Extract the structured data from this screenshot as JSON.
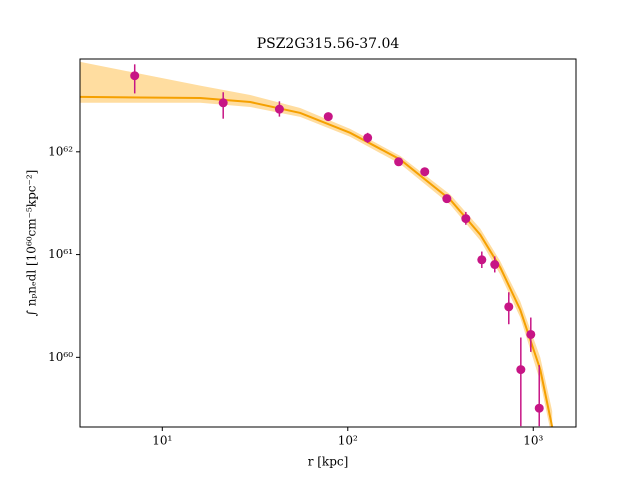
{
  "chart_data": {
    "type": "scatter",
    "title": "PSZ2G315.56-37.04",
    "xlabel": "r [kpc]",
    "ylabel": "∫ nₚnₑdl [10⁶⁰cm⁻⁵kpc⁻²]",
    "xscale": "log",
    "yscale": "log",
    "xlim": [
      3.6,
      1700
    ],
    "ylim": [
      2.1e+59,
      8e+62
    ],
    "xticks": [
      {
        "value": 10,
        "label": "10¹"
      },
      {
        "value": 100,
        "label": "10²"
      },
      {
        "value": 1000,
        "label": "10³"
      }
    ],
    "yticks": [
      {
        "value": 1e+60,
        "label": "10⁶⁰"
      },
      {
        "value": 1e+61,
        "label": "10⁶¹"
      },
      {
        "value": 1e+62,
        "label": "10⁶²"
      }
    ],
    "series": [
      {
        "color": "#c71585",
        "x": [
          7.1,
          21.3,
          42.8,
          78.5,
          128,
          188,
          260,
          342,
          433,
          528,
          620,
          738,
          857,
          970,
          1077
        ],
        "values": [
          5.5e+62,
          3e+62,
          2.6e+62,
          2.2e+62,
          1.37e+62,
          8e+61,
          6.4e+61,
          3.5e+61,
          2.24e+61,
          8.9e+60,
          8e+60,
          3.1e+60,
          7.6e+59,
          1.67e+60,
          3.2e+59
        ],
        "upper": [
          7.1e+62,
          3.8e+62,
          3.1e+62,
          2.4e+62,
          1.53e+62,
          8.8e+61,
          7e+61,
          3.8e+61,
          2.6e+61,
          1.07e+61,
          9.6e+60,
          4.3e+60,
          1.56e+60,
          2.44e+60,
          8.4e+59
        ],
        "lower": [
          3.7e+62,
          2.1e+62,
          2.2e+62,
          2e+62,
          1.22e+62,
          7.3e+61,
          5.8e+61,
          3.2e+61,
          1.95e+61,
          7.4e+60,
          6.7e+60,
          2.1e+60,
          2.14e+59,
          1.13e+60,
          2.14e+59
        ]
      }
    ],
    "model": {
      "color": "#f5a000",
      "band_color": "#ffc760",
      "x": [
        3.61,
        16.0,
        29.8,
        55.4,
        103,
        192,
        357,
        518,
        664,
        851,
        1091,
        1265
      ],
      "values": [
        3.42e+62,
        3.34e+62,
        3.05e+62,
        2.39e+62,
        1.53e+62,
        8.4e+61,
        3.42e+61,
        1.56e+61,
        7.5e+60,
        2.9e+60,
        7.6e+59,
        2.1e+59
      ],
      "upper": [
        7.5e+62,
        4.4e+62,
        3.57e+62,
        2.67e+62,
        1.67e+62,
        9.1e+61,
        3.83e+61,
        1.79e+61,
        8.6e+60,
        3.5e+60,
        1e+60,
        3e+59
      ],
      "lower": [
        3e+62,
        3e+62,
        2.73e+62,
        2.19e+62,
        1.4e+62,
        7.6e+61,
        3.05e+61,
        1.37e+61,
        6.4e+60,
        2.44e+60,
        5.8e+59,
        1.6e+59
      ]
    }
  }
}
